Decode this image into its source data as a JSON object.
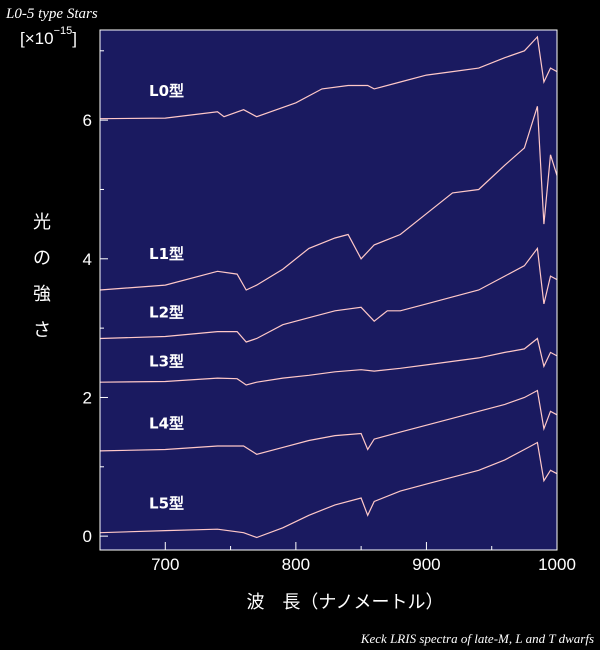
{
  "chart_data": {
    "type": "line",
    "title": "L0-5 type Stars",
    "credit": "Keck LRIS spectra of late-M, L and T dwarfs",
    "xlabel": "波　長（ナノメートル）",
    "ylabel": [
      "光",
      "の",
      "強",
      "さ"
    ],
    "yunit_open": "[",
    "yunit_times": "×10",
    "yunit_exp": "−15",
    "yunit_close": "]",
    "xlim": [
      650,
      1000
    ],
    "ylim": [
      -0.2,
      7.3
    ],
    "xticks": [
      700,
      800,
      900,
      1000
    ],
    "yticks": [
      0,
      2,
      4,
      6
    ],
    "xtick_labels": [
      "700",
      "800",
      "900",
      "1000"
    ],
    "ytick_labels": [
      "0",
      "2",
      "4",
      "6"
    ],
    "grid": false,
    "background_color": "#1a1a60",
    "line_color": "#ffc8c8",
    "series": [
      {
        "name": "L0型",
        "label_x": 660,
        "label_y": 6.35,
        "x": [
          650,
          700,
          740,
          745,
          760,
          770,
          800,
          820,
          840,
          855,
          860,
          880,
          900,
          920,
          940,
          960,
          975,
          985,
          990,
          995,
          1000
        ],
        "y": [
          6.02,
          6.03,
          6.12,
          6.05,
          6.15,
          6.05,
          6.25,
          6.45,
          6.5,
          6.5,
          6.45,
          6.55,
          6.65,
          6.7,
          6.75,
          6.9,
          7.0,
          7.2,
          6.55,
          6.75,
          6.7
        ]
      },
      {
        "name": "L1型",
        "label_x": 660,
        "label_y": 4.0,
        "x": [
          650,
          700,
          740,
          755,
          762,
          770,
          790,
          810,
          830,
          840,
          850,
          860,
          880,
          900,
          920,
          940,
          960,
          975,
          985,
          990,
          995,
          1000
        ],
        "y": [
          3.55,
          3.62,
          3.82,
          3.78,
          3.55,
          3.62,
          3.85,
          4.15,
          4.3,
          4.35,
          4.0,
          4.2,
          4.35,
          4.65,
          4.95,
          5.0,
          5.35,
          5.6,
          6.2,
          4.5,
          5.5,
          5.2
        ]
      },
      {
        "name": "L2型",
        "label_x": 660,
        "label_y": 3.15,
        "x": [
          650,
          700,
          740,
          755,
          762,
          770,
          790,
          810,
          830,
          850,
          860,
          870,
          880,
          900,
          920,
          940,
          960,
          975,
          985,
          990,
          995,
          1000
        ],
        "y": [
          2.85,
          2.88,
          2.95,
          2.95,
          2.8,
          2.85,
          3.05,
          3.15,
          3.25,
          3.3,
          3.1,
          3.25,
          3.25,
          3.35,
          3.45,
          3.55,
          3.75,
          3.9,
          4.15,
          3.35,
          3.75,
          3.7
        ]
      },
      {
        "name": "L3型",
        "label_x": 660,
        "label_y": 2.45,
        "x": [
          650,
          700,
          740,
          755,
          762,
          770,
          790,
          810,
          830,
          850,
          860,
          880,
          900,
          920,
          940,
          960,
          975,
          985,
          990,
          995,
          1000
        ],
        "y": [
          2.22,
          2.23,
          2.28,
          2.27,
          2.18,
          2.22,
          2.28,
          2.32,
          2.37,
          2.4,
          2.38,
          2.42,
          2.47,
          2.52,
          2.57,
          2.65,
          2.7,
          2.85,
          2.45,
          2.65,
          2.6
        ]
      },
      {
        "name": "L4型",
        "label_x": 660,
        "label_y": 1.55,
        "x": [
          650,
          700,
          740,
          760,
          770,
          790,
          810,
          830,
          850,
          855,
          860,
          880,
          900,
          920,
          940,
          960,
          975,
          985,
          990,
          995,
          1000
        ],
        "y": [
          1.23,
          1.25,
          1.3,
          1.3,
          1.18,
          1.28,
          1.38,
          1.45,
          1.48,
          1.25,
          1.4,
          1.5,
          1.6,
          1.7,
          1.8,
          1.9,
          2.0,
          2.1,
          1.55,
          1.8,
          1.75
        ]
      },
      {
        "name": "L5型",
        "label_x": 660,
        "label_y": 0.4,
        "x": [
          650,
          700,
          740,
          760,
          770,
          790,
          810,
          830,
          850,
          855,
          860,
          880,
          900,
          920,
          940,
          960,
          975,
          985,
          990,
          995,
          1000
        ],
        "y": [
          0.05,
          0.08,
          0.1,
          0.05,
          -0.02,
          0.12,
          0.3,
          0.45,
          0.55,
          0.3,
          0.5,
          0.65,
          0.75,
          0.85,
          0.95,
          1.1,
          1.25,
          1.35,
          0.8,
          0.95,
          0.9
        ]
      }
    ]
  }
}
